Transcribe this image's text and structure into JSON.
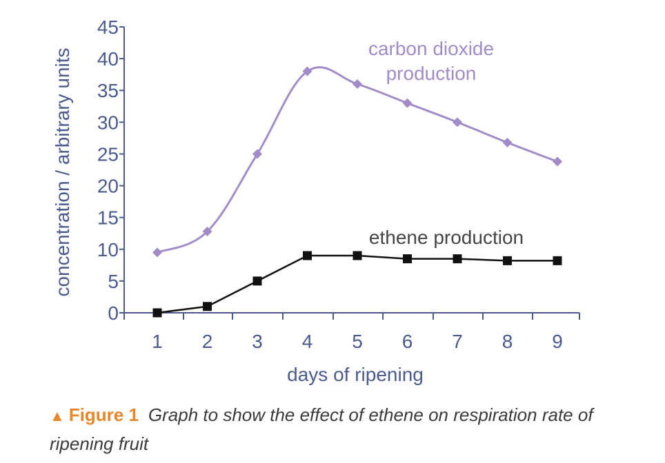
{
  "chart_data": {
    "type": "line",
    "xlabel": "days of ripening",
    "ylabel": "concentration / arbitrary units",
    "x": [
      1,
      2,
      3,
      4,
      5,
      6,
      7,
      8,
      9
    ],
    "xlim": [
      0.5,
      9.5
    ],
    "ylim": [
      0,
      45
    ],
    "yticks": [
      0,
      5,
      10,
      15,
      20,
      25,
      30,
      35,
      40,
      45
    ],
    "grid": false,
    "series": [
      {
        "name": "carbon dioxide production",
        "label_lines": [
          "carbon dioxide",
          "production"
        ],
        "color": "#a18cc7",
        "marker": "diamond",
        "curve": "smooth",
        "values": [
          9.5,
          12.8,
          25,
          38,
          36,
          33,
          30,
          26.8,
          23.8
        ]
      },
      {
        "name": "ethene production",
        "label_lines": [
          "ethene production"
        ],
        "color": "#111111",
        "marker": "square",
        "curve": "linear",
        "values": [
          0,
          1,
          5,
          9,
          9,
          8.5,
          8.5,
          8.2,
          8.2
        ]
      }
    ]
  },
  "caption": {
    "marker": "▲",
    "figure_label": "Figure 1",
    "text": "Graph to show the effect of ethene on respiration rate of ripening fruit"
  },
  "colors": {
    "axis": "#4a5a8c",
    "accent": "#e8862a"
  }
}
